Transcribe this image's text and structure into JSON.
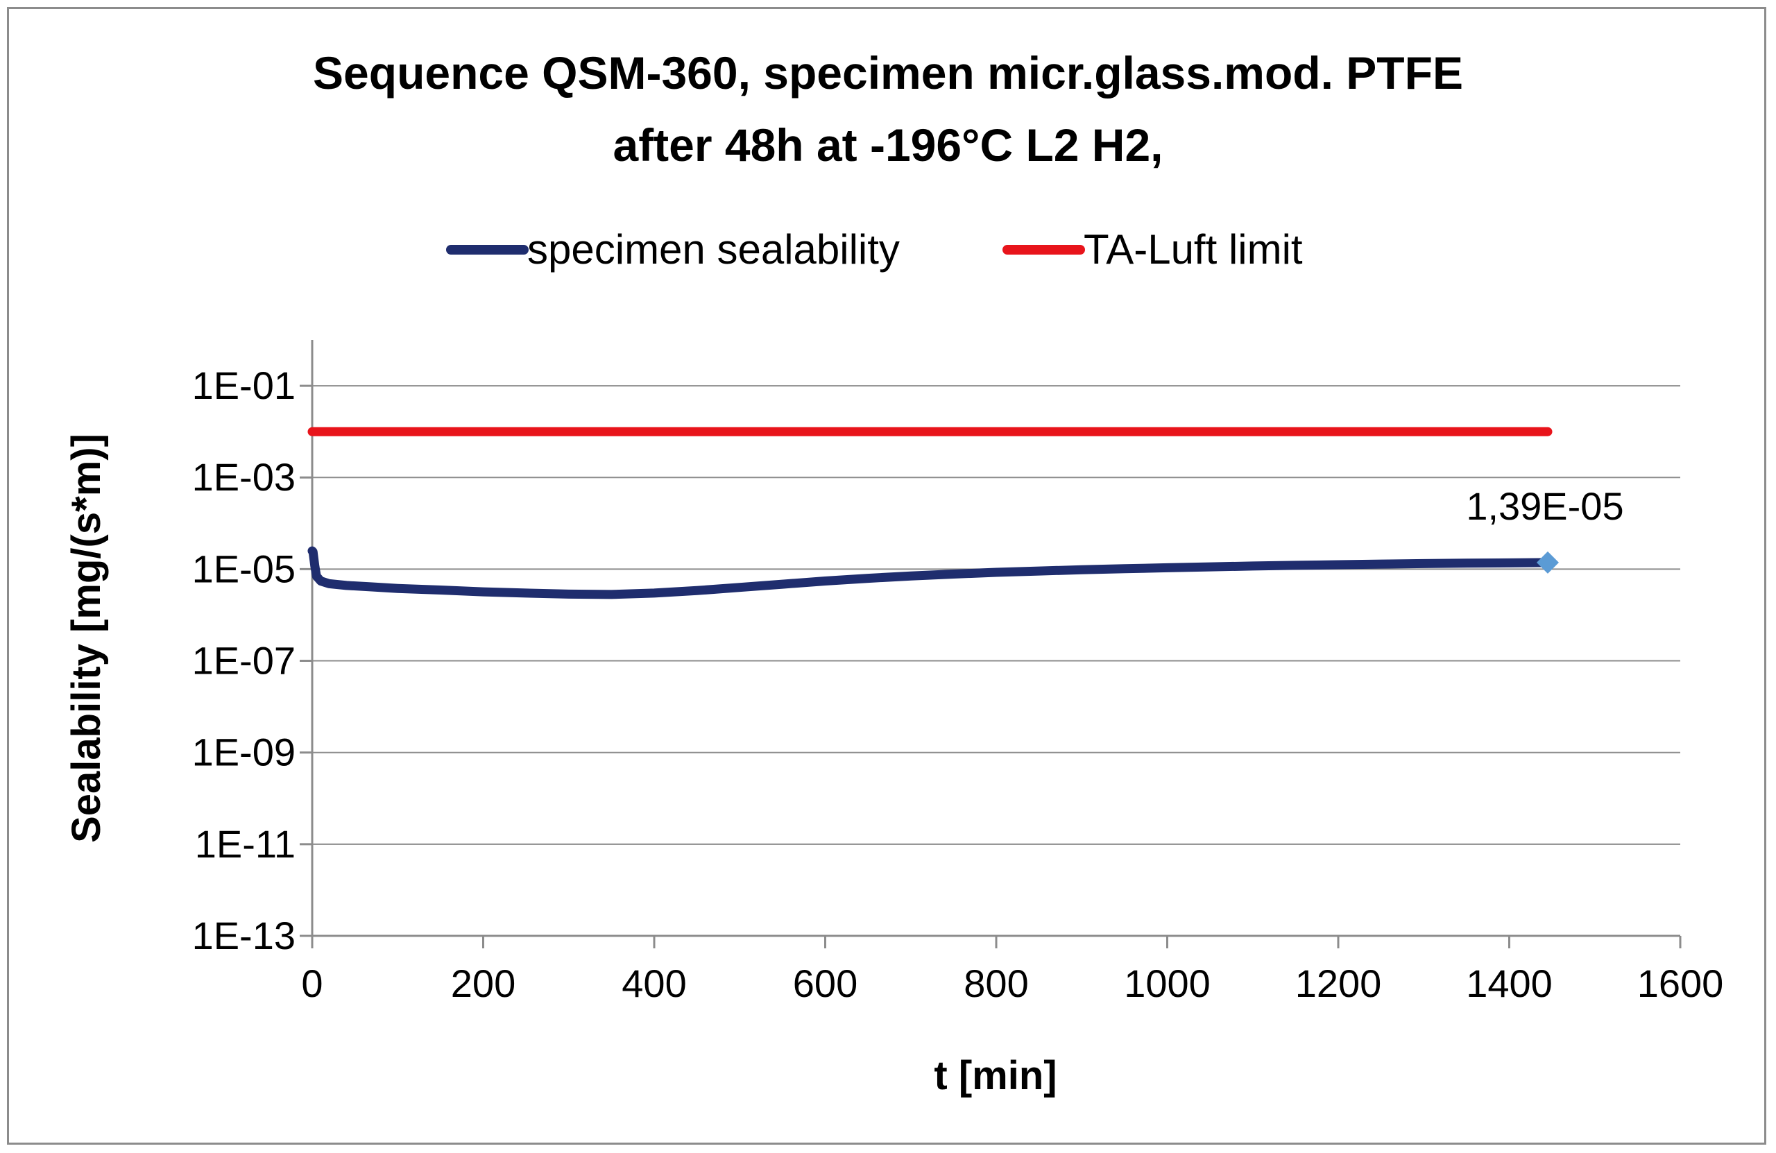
{
  "chart_data": {
    "type": "line",
    "title": [
      "Sequence QSM-360, specimen micr.glass.mod. PTFE",
      "after 48h at -196°C L2 H2,"
    ],
    "xlabel": "t [min]",
    "ylabel": "Sealability [mg/(s*m)]",
    "xlim": [
      0,
      1600
    ],
    "ylim": [
      1e-13,
      1
    ],
    "yscale": "log",
    "grid": "horizontal",
    "legend_position": "top",
    "x_ticks": [
      0,
      200,
      400,
      600,
      800,
      1000,
      1200,
      1400,
      1600
    ],
    "x_tick_labels": [
      "0",
      "200",
      "400",
      "600",
      "800",
      "1000",
      "1200",
      "1400",
      "1600"
    ],
    "y_ticks": [
      0.1,
      0.001,
      1e-05,
      1e-07,
      1e-09,
      1e-11,
      1e-13
    ],
    "y_tick_labels": [
      "1E-01",
      "1E-03",
      "1E-05",
      "1E-07",
      "1E-09",
      "1E-11",
      "1E-13"
    ],
    "series": [
      {
        "name": "specimen sealability",
        "color": "#1f2d6e",
        "x": [
          0,
          1,
          3,
          5,
          10,
          20,
          40,
          70,
          100,
          150,
          200,
          250,
          300,
          350,
          400,
          450,
          500,
          550,
          600,
          650,
          700,
          750,
          800,
          850,
          900,
          950,
          1000,
          1050,
          1100,
          1150,
          1200,
          1250,
          1300,
          1350,
          1400,
          1445
        ],
        "y": [
          2.5e-05,
          2.4e-05,
          1.2e-05,
          7e-06,
          5.5e-06,
          4.8e-06,
          4.4e-06,
          4.1e-06,
          3.8e-06,
          3.5e-06,
          3.2e-06,
          3e-06,
          2.85e-06,
          2.8e-06,
          3e-06,
          3.4e-06,
          4e-06,
          4.7e-06,
          5.5e-06,
          6.3e-06,
          7.1e-06,
          7.8e-06,
          8.5e-06,
          9.1e-06,
          9.7e-06,
          1.02e-05,
          1.07e-05,
          1.12e-05,
          1.17e-05,
          1.21e-05,
          1.25e-05,
          1.29e-05,
          1.32e-05,
          1.35e-05,
          1.37e-05,
          1.39e-05
        ]
      },
      {
        "name": "TA-Luft limit",
        "color": "#e8141b",
        "x": [
          0,
          1445
        ],
        "y": [
          0.01,
          0.01
        ]
      }
    ],
    "annotations": [
      {
        "text": "1,39E-05",
        "x": 1445,
        "y": 1.39e-05,
        "marker": "diamond",
        "color": "#5b9bd5"
      }
    ]
  }
}
